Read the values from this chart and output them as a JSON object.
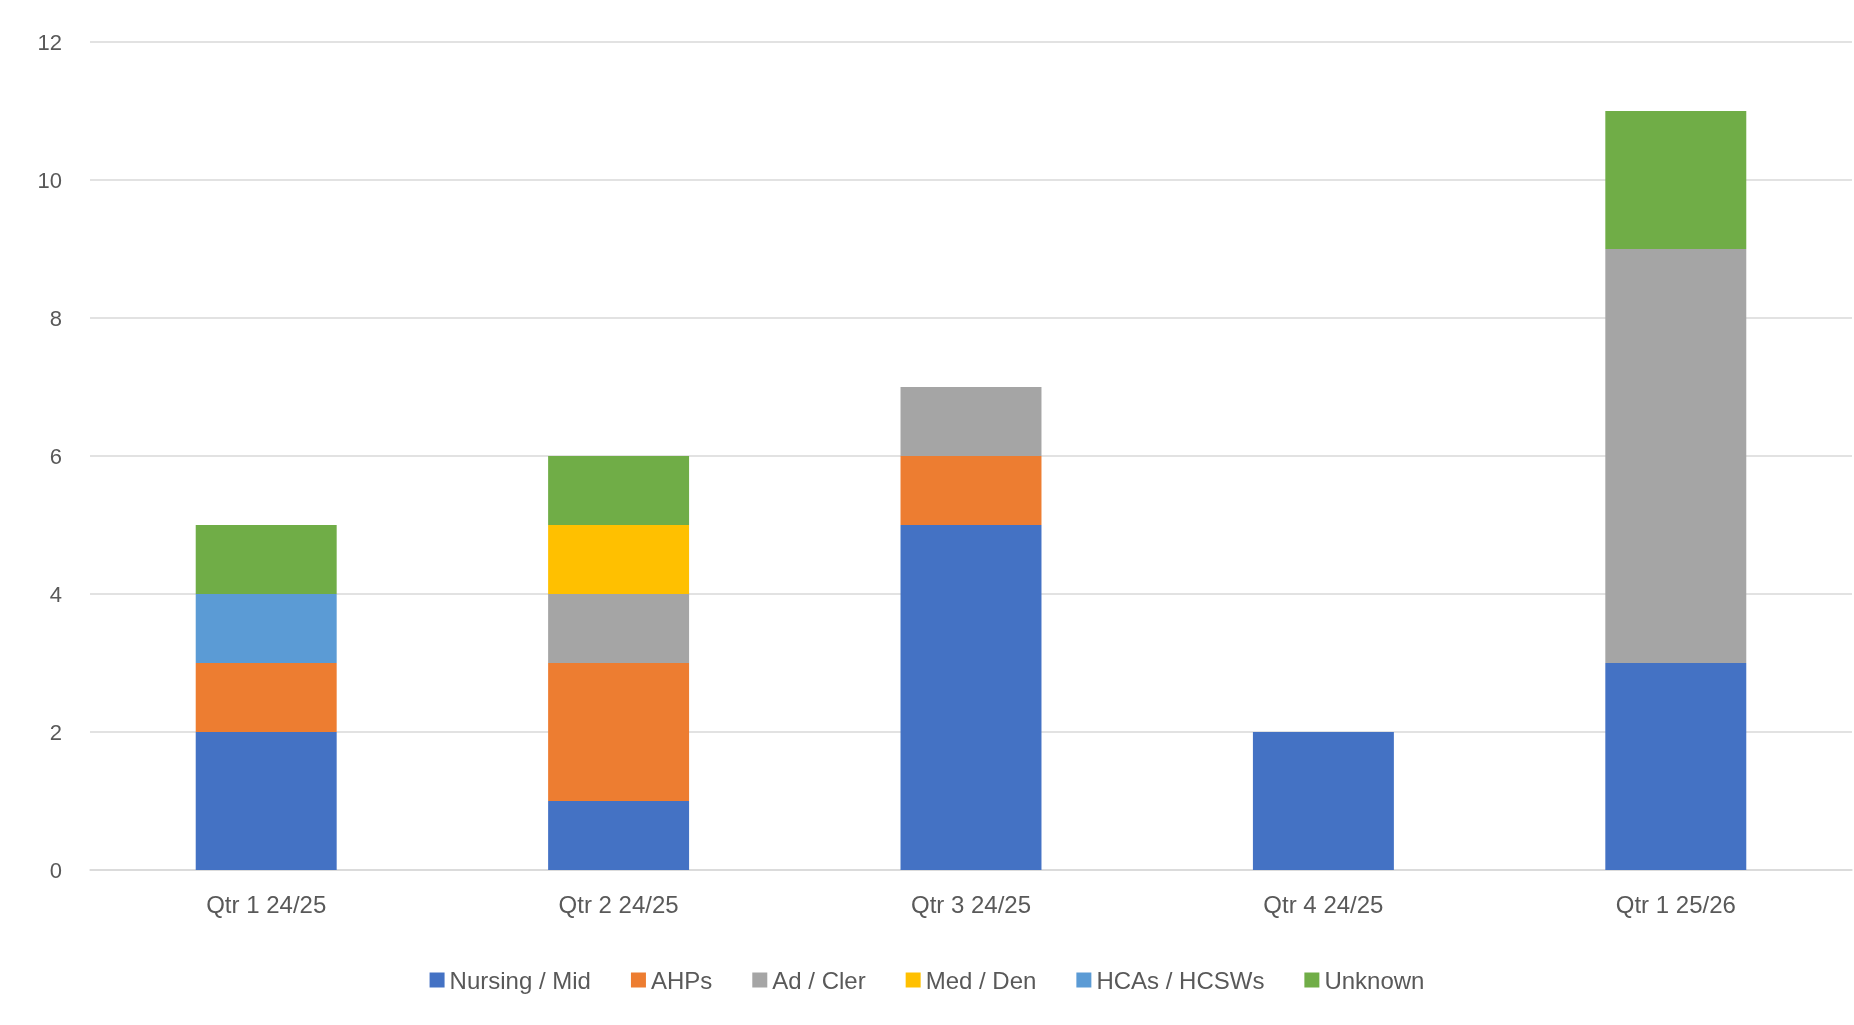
{
  "chart_data": {
    "type": "bar",
    "stacked": true,
    "categories": [
      "Qtr 1 24/25",
      "Qtr 2 24/25",
      "Qtr 3 24/25",
      "Qtr 4 24/25",
      "Qtr 1 25/26"
    ],
    "series": [
      {
        "name": "Nursing / Mid",
        "color": "#4472c4",
        "values": [
          2,
          1,
          5,
          2,
          3
        ]
      },
      {
        "name": "AHPs",
        "color": "#ed7d31",
        "values": [
          1,
          2,
          1,
          null,
          null
        ]
      },
      {
        "name": "Ad / Cler",
        "color": "#a5a5a5",
        "values": [
          null,
          1,
          1,
          null,
          6
        ]
      },
      {
        "name": "Med / Den",
        "color": "#ffc000",
        "values": [
          null,
          1,
          null,
          null,
          null
        ]
      },
      {
        "name": "HCAs / HCSWs",
        "color": "#5b9bd5",
        "values": [
          1,
          null,
          null,
          null,
          null
        ]
      },
      {
        "name": "Unknown",
        "color": "#70ad47",
        "values": [
          1,
          1,
          null,
          null,
          2
        ]
      }
    ],
    "ylim": [
      0,
      12
    ],
    "yticks": [
      0,
      2,
      4,
      6,
      8,
      10,
      12
    ],
    "grid": "y",
    "legend": "bottom"
  }
}
